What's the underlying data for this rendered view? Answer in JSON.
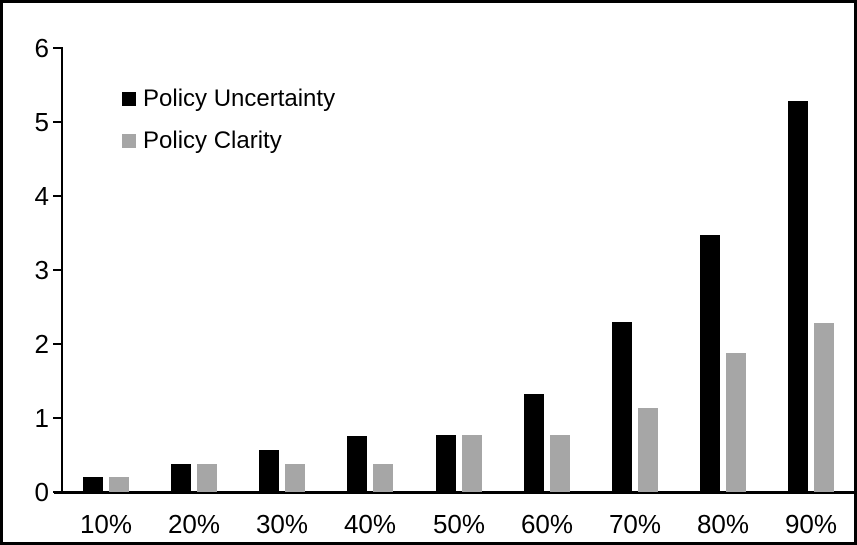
{
  "chart_data": {
    "type": "bar",
    "title": "",
    "xlabel": "",
    "ylabel": "",
    "categories": [
      "10%",
      "20%",
      "30%",
      "40%",
      "50%",
      "60%",
      "70%",
      "80%",
      "90%"
    ],
    "series": [
      {
        "name": "Policy Uncertainty",
        "color": "#000000",
        "values": [
          0.2,
          0.38,
          0.57,
          0.76,
          0.77,
          1.32,
          2.3,
          3.47,
          5.28
        ]
      },
      {
        "name": "Policy Clarity",
        "color": "#a6a6a6",
        "values": [
          0.2,
          0.38,
          0.38,
          0.38,
          0.77,
          0.77,
          1.14,
          1.88,
          2.28
        ]
      }
    ],
    "ylim": [
      0,
      6
    ],
    "y_ticks": [
      0,
      1,
      2,
      3,
      4,
      5,
      6
    ],
    "grid": "off",
    "legend_position": "top-left-inside",
    "background": "#ffffff",
    "border_color": "#000000"
  }
}
